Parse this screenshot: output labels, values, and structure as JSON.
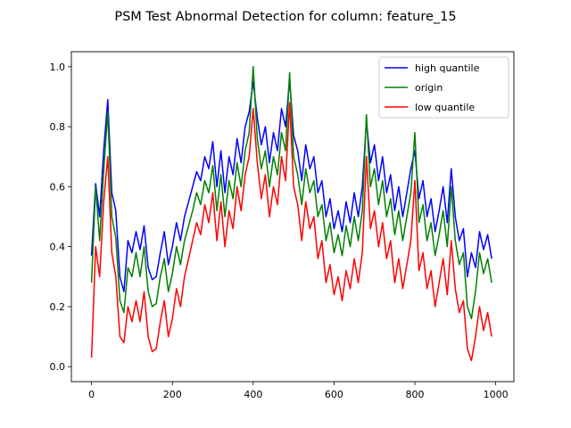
{
  "chart_data": {
    "type": "line",
    "title": "PSM Test Abnormal Detection for column: feature_15",
    "xlabel": "",
    "ylabel": "",
    "xlim": [
      -50,
      1045
    ],
    "ylim": [
      -0.05,
      1.05
    ],
    "xticks": [
      0,
      200,
      400,
      600,
      800,
      1000
    ],
    "yticks": [
      0.0,
      0.2,
      0.4,
      0.6,
      0.8,
      1.0
    ],
    "xtick_labels": [
      "0",
      "200",
      "400",
      "600",
      "800",
      "1000"
    ],
    "ytick_labels": [
      "0.0",
      "0.2",
      "0.4",
      "0.6",
      "0.8",
      "1.0"
    ],
    "grid": false,
    "legend_position": "top-right",
    "x": [
      0,
      10,
      20,
      30,
      40,
      50,
      60,
      70,
      80,
      90,
      100,
      110,
      120,
      130,
      140,
      150,
      160,
      170,
      180,
      190,
      200,
      210,
      220,
      230,
      240,
      250,
      260,
      270,
      280,
      290,
      300,
      310,
      320,
      330,
      340,
      350,
      360,
      370,
      380,
      390,
      400,
      410,
      420,
      430,
      440,
      450,
      460,
      470,
      480,
      490,
      500,
      510,
      520,
      530,
      540,
      550,
      560,
      570,
      580,
      590,
      600,
      610,
      620,
      630,
      640,
      650,
      660,
      670,
      680,
      690,
      700,
      710,
      720,
      730,
      740,
      750,
      760,
      770,
      780,
      790,
      800,
      810,
      820,
      830,
      840,
      850,
      860,
      870,
      880,
      890,
      900,
      910,
      920,
      930,
      940,
      950,
      960,
      970,
      980,
      990
    ],
    "series": [
      {
        "name": "high quantile",
        "color": "#0000ff",
        "values": [
          0.37,
          0.61,
          0.5,
          0.72,
          0.89,
          0.58,
          0.52,
          0.3,
          0.25,
          0.42,
          0.38,
          0.45,
          0.39,
          0.47,
          0.33,
          0.29,
          0.3,
          0.38,
          0.45,
          0.34,
          0.4,
          0.48,
          0.42,
          0.5,
          0.55,
          0.6,
          0.65,
          0.62,
          0.7,
          0.66,
          0.75,
          0.6,
          0.72,
          0.58,
          0.7,
          0.64,
          0.76,
          0.68,
          0.8,
          0.85,
          0.95,
          0.83,
          0.74,
          0.8,
          0.68,
          0.78,
          0.72,
          0.86,
          0.8,
          0.96,
          0.77,
          0.72,
          0.62,
          0.74,
          0.66,
          0.7,
          0.58,
          0.62,
          0.5,
          0.56,
          0.46,
          0.52,
          0.45,
          0.55,
          0.48,
          0.58,
          0.5,
          0.6,
          0.82,
          0.68,
          0.74,
          0.62,
          0.7,
          0.58,
          0.64,
          0.52,
          0.6,
          0.5,
          0.58,
          0.66,
          0.72,
          0.56,
          0.62,
          0.5,
          0.56,
          0.45,
          0.52,
          0.6,
          0.48,
          0.66,
          0.5,
          0.42,
          0.46,
          0.3,
          0.38,
          0.33,
          0.45,
          0.39,
          0.44,
          0.36
        ]
      },
      {
        "name": "origin",
        "color": "#008000",
        "values": [
          0.28,
          0.6,
          0.42,
          0.65,
          0.85,
          0.5,
          0.43,
          0.22,
          0.18,
          0.33,
          0.3,
          0.38,
          0.3,
          0.4,
          0.25,
          0.2,
          0.21,
          0.3,
          0.36,
          0.25,
          0.31,
          0.4,
          0.34,
          0.42,
          0.47,
          0.52,
          0.58,
          0.54,
          0.62,
          0.58,
          0.67,
          0.52,
          0.64,
          0.5,
          0.62,
          0.56,
          0.68,
          0.6,
          0.72,
          0.78,
          1.0,
          0.76,
          0.66,
          0.72,
          0.6,
          0.7,
          0.64,
          0.78,
          0.72,
          0.98,
          0.7,
          0.64,
          0.54,
          0.66,
          0.58,
          0.62,
          0.5,
          0.54,
          0.42,
          0.48,
          0.38,
          0.44,
          0.37,
          0.47,
          0.4,
          0.5,
          0.42,
          0.52,
          0.84,
          0.6,
          0.66,
          0.54,
          0.62,
          0.5,
          0.56,
          0.44,
          0.52,
          0.42,
          0.5,
          0.58,
          0.78,
          0.48,
          0.54,
          0.42,
          0.48,
          0.37,
          0.44,
          0.52,
          0.4,
          0.6,
          0.42,
          0.34,
          0.38,
          0.2,
          0.16,
          0.25,
          0.38,
          0.31,
          0.36,
          0.28
        ]
      },
      {
        "name": "low quantile",
        "color": "#ff0000",
        "values": [
          0.03,
          0.4,
          0.3,
          0.55,
          0.7,
          0.38,
          0.3,
          0.1,
          0.08,
          0.2,
          0.15,
          0.22,
          0.15,
          0.25,
          0.1,
          0.05,
          0.06,
          0.15,
          0.22,
          0.1,
          0.16,
          0.26,
          0.2,
          0.3,
          0.36,
          0.42,
          0.48,
          0.44,
          0.54,
          0.48,
          0.58,
          0.42,
          0.55,
          0.4,
          0.52,
          0.46,
          0.6,
          0.52,
          0.64,
          0.7,
          0.86,
          0.68,
          0.56,
          0.64,
          0.5,
          0.6,
          0.54,
          0.7,
          0.62,
          0.88,
          0.6,
          0.54,
          0.42,
          0.55,
          0.46,
          0.5,
          0.36,
          0.42,
          0.28,
          0.34,
          0.24,
          0.3,
          0.22,
          0.32,
          0.26,
          0.36,
          0.28,
          0.38,
          0.7,
          0.46,
          0.52,
          0.4,
          0.48,
          0.36,
          0.42,
          0.28,
          0.36,
          0.26,
          0.34,
          0.42,
          0.62,
          0.32,
          0.38,
          0.26,
          0.32,
          0.2,
          0.28,
          0.36,
          0.24,
          0.42,
          0.26,
          0.18,
          0.22,
          0.06,
          0.02,
          0.1,
          0.2,
          0.12,
          0.18,
          0.1
        ]
      }
    ]
  }
}
